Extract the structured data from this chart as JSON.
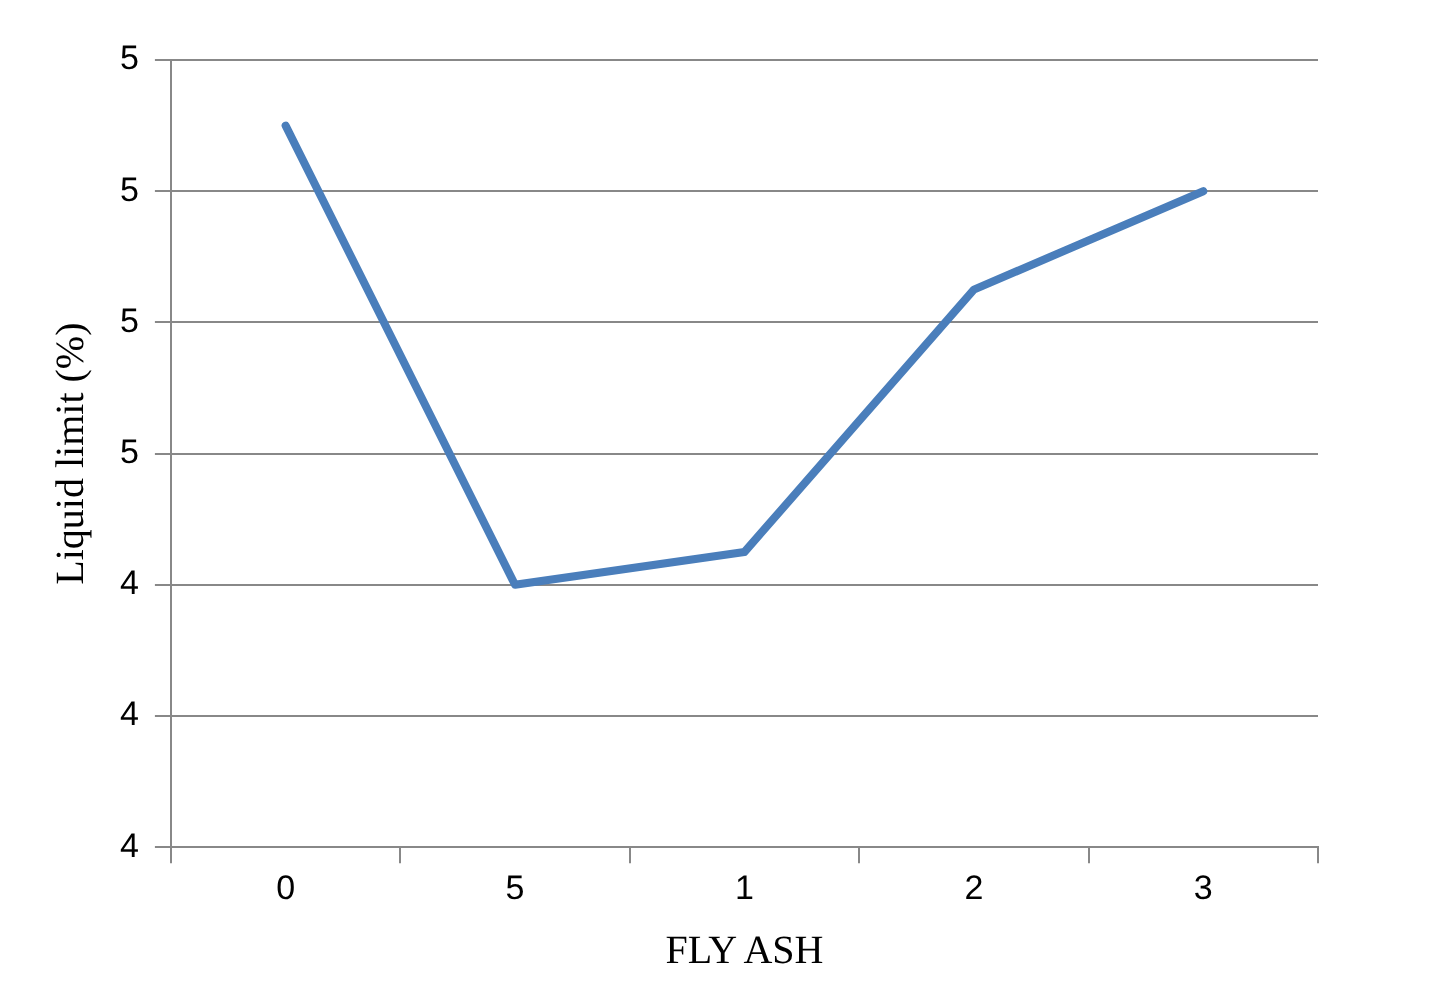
{
  "chart_data": {
    "type": "line",
    "xlabel": "FLY ASH",
    "ylabel": "Liquid limit (%)",
    "categories": [
      "0",
      "5",
      "1",
      "2",
      "3"
    ],
    "series": [
      {
        "color": "#4a7ebb",
        "values": [
          5.1,
          4.4,
          4.45,
          4.85,
          5.0
        ]
      }
    ],
    "ylim": [
      4.0,
      5.2
    ],
    "yticks": [
      {
        "value": 4.0,
        "label": "4"
      },
      {
        "value": 4.2,
        "label": "4"
      },
      {
        "value": 4.4,
        "label": "4"
      },
      {
        "value": 4.6,
        "label": "5"
      },
      {
        "value": 4.8,
        "label": "5"
      },
      {
        "value": 5.0,
        "label": "5"
      },
      {
        "value": 5.2,
        "label": "5"
      }
    ],
    "grid": "y",
    "legend": false,
    "marker": "none",
    "line_style": "solid"
  }
}
